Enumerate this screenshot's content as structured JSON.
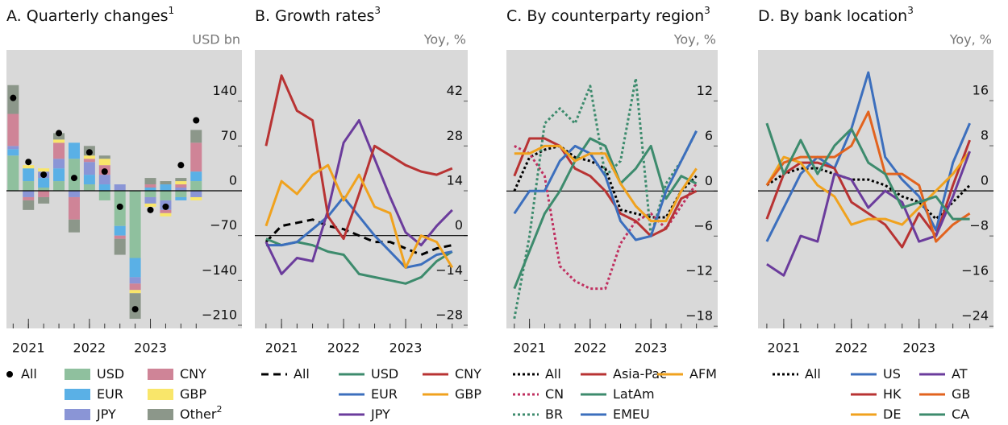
{
  "chart_data": [
    {
      "type": "bar",
      "title": "A. Quarterly changes",
      "title_note": "1",
      "unit": "USD bn",
      "x": [
        2020.75,
        2021,
        2021.25,
        2021.5,
        2021.75,
        2022,
        2022.25,
        2022.5,
        2022.75,
        2023,
        2023.25,
        2023.5,
        2023.75
      ],
      "xlim": [
        2020.64,
        2024.5
      ],
      "xticks": [
        2021,
        2022,
        2023
      ],
      "ylim": [
        -215,
        220
      ],
      "yticks": [
        {
          "value": 140,
          "label": "140"
        },
        {
          "value": 70,
          "label": "70"
        },
        0,
        {
          "value": -70,
          "label": "−70"
        },
        {
          "value": -140,
          "label": "−140"
        },
        {
          "value": -210,
          "label": "−210"
        }
      ],
      "series": [
        {
          "name": "All",
          "marker": "dot",
          "color": "#000000",
          "values": [
            145,
            45,
            25,
            90,
            20,
            60,
            30,
            -25,
            -185,
            -30,
            -25,
            40,
            110
          ]
        },
        {
          "name": "USD",
          "color": "#8fc09e",
          "values": [
            55,
            15,
            5,
            15,
            50,
            10,
            -15,
            -55,
            -105,
            -10,
            -15,
            -10,
            15
          ]
        },
        {
          "name": "EUR",
          "color": "#5ab0e6",
          "values": [
            10,
            20,
            15,
            20,
            25,
            15,
            10,
            -15,
            -30,
            5,
            10,
            -5,
            15
          ]
        },
        {
          "name": "JPY",
          "color": "#8a95d6",
          "values": [
            5,
            -10,
            10,
            15,
            -10,
            20,
            15,
            10,
            -10,
            -10,
            -15,
            5,
            -10
          ]
        },
        {
          "name": "CNY",
          "color": "#cf8497",
          "values": [
            50,
            -5,
            -10,
            25,
            -35,
            5,
            15,
            -5,
            -10,
            5,
            -5,
            5,
            45
          ]
        },
        {
          "name": "GBP",
          "color": "#f9e66a",
          "values": [
            0,
            5,
            5,
            5,
            0,
            5,
            10,
            0,
            -5,
            -5,
            -5,
            5,
            -5
          ]
        },
        {
          "name": "Other",
          "note": "2",
          "color": "#8c978a",
          "values": [
            45,
            -15,
            -10,
            10,
            -20,
            15,
            5,
            -25,
            -40,
            10,
            5,
            5,
            20
          ]
        }
      ]
    },
    {
      "type": "line",
      "title": "B. Growth rates",
      "title_note": "3",
      "unit": "Yoy, %",
      "x": [
        2020.75,
        2021,
        2021.25,
        2021.5,
        2021.75,
        2022,
        2022.25,
        2022.5,
        2022.75,
        2023,
        2023.25,
        2023.5,
        2023.75
      ],
      "xlim": [
        2020.57,
        2024.0
      ],
      "xticks": [
        2021,
        2022,
        2023
      ],
      "ylim": [
        -29,
        58
      ],
      "yticks": [
        42,
        28,
        14,
        0,
        {
          "value": -14,
          "label": "−14"
        },
        {
          "value": -28,
          "label": "−28"
        }
      ],
      "series": [
        {
          "name": "All",
          "style": "dashed",
          "color": "#000000",
          "values": [
            -2,
            3,
            4,
            5,
            3,
            2,
            0,
            -2,
            -2,
            -4,
            -6,
            -4,
            -3
          ]
        },
        {
          "name": "USD",
          "style": "solid",
          "color": "#3d8b6d",
          "values": [
            -1,
            -3,
            -2,
            -3,
            -5,
            -6,
            -12,
            -13,
            -14,
            -15,
            -13,
            -8,
            -5
          ]
        },
        {
          "name": "EUR",
          "style": "solid",
          "color": "#3c6fbd",
          "values": [
            -3,
            -3,
            -2,
            2,
            6,
            12,
            6,
            0,
            -5,
            -10,
            -9,
            -6,
            -5
          ]
        },
        {
          "name": "JPY",
          "style": "solid",
          "color": "#6b3c9c",
          "values": [
            -2,
            -12,
            -7,
            -8,
            8,
            29,
            36,
            24,
            12,
            1,
            -3,
            3,
            8
          ]
        },
        {
          "name": "CNY",
          "style": "solid",
          "color": "#b83333",
          "values": [
            28,
            50,
            39,
            36,
            6,
            -1,
            13,
            28,
            25,
            22,
            20,
            19,
            21
          ]
        },
        {
          "name": "GBP",
          "style": "solid",
          "color": "#f0a21e",
          "values": [
            3,
            17,
            13,
            19,
            22,
            11,
            19,
            9,
            7,
            -10,
            0,
            -2,
            -10
          ]
        }
      ]
    },
    {
      "type": "line",
      "title": "C. By counterparty region",
      "title_note": "3",
      "unit": "Yoy, %",
      "x": [
        2020.75,
        2021,
        2021.25,
        2021.5,
        2021.75,
        2022,
        2022.25,
        2022.5,
        2022.75,
        2023,
        2023.25,
        2023.5,
        2023.75
      ],
      "xlim": [
        2020.62,
        2024.1
      ],
      "xticks": [
        2021,
        2022,
        2023
      ],
      "ylim": [
        -18.3,
        18.8
      ],
      "yticks": [
        12,
        6,
        0,
        {
          "value": -6,
          "label": "−6"
        },
        {
          "value": -12,
          "label": "−12"
        },
        {
          "value": -18,
          "label": "−18"
        }
      ],
      "series": [
        {
          "name": "All",
          "style": "dotted",
          "color": "#000000",
          "values": [
            0,
            4.5,
            5.5,
            6,
            4.5,
            4,
            3,
            -2.5,
            -3,
            -3.5,
            -3.5,
            0,
            2
          ]
        },
        {
          "name": "CN",
          "style": "dotted",
          "color": "#c03060",
          "values": [
            6,
            5,
            2,
            -10,
            -12,
            -13,
            -13,
            -7,
            -4,
            -3,
            -5,
            -2,
            1
          ]
        },
        {
          "name": "BR",
          "style": "dotted",
          "color": "#3d8b6d",
          "values": [
            -17,
            -6,
            9,
            11,
            9,
            14,
            2,
            4,
            15,
            -6,
            1,
            4,
            8
          ]
        },
        {
          "name": "Asia-Pac",
          "style": "solid",
          "color": "#b83333",
          "values": [
            2,
            7,
            7,
            6,
            3,
            2,
            0,
            -3,
            -4,
            -6,
            -5,
            -1,
            0
          ]
        },
        {
          "name": "LatAm",
          "style": "solid",
          "color": "#3d8b6d",
          "values": [
            -13,
            -8,
            -3,
            0,
            4,
            7,
            6,
            1,
            3,
            6,
            -1,
            2,
            1
          ]
        },
        {
          "name": "EMEU",
          "style": "solid",
          "color": "#3c6fbd",
          "values": [
            -3,
            0,
            0,
            4,
            6,
            5,
            2,
            -4,
            -6.5,
            -6,
            0,
            4,
            8
          ]
        },
        {
          "name": "AFM",
          "style": "solid",
          "color": "#f0a21e",
          "values": [
            5,
            5,
            6,
            6,
            4,
            5,
            5,
            1,
            -2,
            -4,
            -4,
            0,
            3
          ]
        }
      ]
    },
    {
      "type": "line",
      "title": "D. By bank location",
      "title_note": "3",
      "unit": "Yoy, %",
      "x": [
        2020.75,
        2021,
        2021.25,
        2021.5,
        2021.75,
        2022,
        2022.25,
        2022.5,
        2022.75,
        2023,
        2023.25,
        2023.5,
        2023.75
      ],
      "xlim": [
        2020.62,
        2024.1
      ],
      "xticks": [
        2021,
        2022,
        2023
      ],
      "ylim": [
        -24.4,
        25
      ],
      "yticks": [
        16,
        8,
        0,
        {
          "value": -8,
          "label": "−8"
        },
        {
          "value": -16,
          "label": "−16"
        },
        {
          "value": -24,
          "label": "−24"
        }
      ],
      "series": [
        {
          "name": "All",
          "style": "dotted",
          "color": "#000000",
          "values": [
            1,
            3,
            4,
            4,
            3,
            2,
            2,
            1,
            -1,
            -2,
            -5,
            -2,
            1
          ]
        },
        {
          "name": "US",
          "style": "solid",
          "color": "#3c6fbd",
          "values": [
            -9,
            -3,
            3,
            6,
            4,
            11,
            21,
            6,
            2,
            -1,
            -7,
            5,
            12
          ]
        },
        {
          "name": "HK",
          "style": "solid",
          "color": "#b83333",
          "values": [
            -5,
            3,
            5,
            5,
            4,
            -2,
            -4,
            -6,
            -10,
            -4,
            -8,
            1,
            9
          ]
        },
        {
          "name": "DE",
          "style": "solid",
          "color": "#f0a21e",
          "values": [
            1,
            6,
            5,
            1,
            -1,
            -6,
            -5,
            -5,
            -6,
            -3,
            0,
            3,
            7
          ]
        },
        {
          "name": "AT",
          "style": "solid",
          "color": "#6b3c9c",
          "values": [
            -13,
            -15,
            -8,
            -9,
            3,
            2,
            -3,
            0,
            -2,
            -9,
            -8,
            -1,
            7
          ]
        },
        {
          "name": "GB",
          "style": "solid",
          "color": "#e2631e",
          "values": [
            1,
            5,
            6,
            6,
            6,
            8,
            14,
            3,
            3,
            1,
            -9,
            -6,
            -4
          ]
        },
        {
          "name": "CA",
          "style": "solid",
          "color": "#3d8b6d",
          "values": [
            12,
            3,
            9,
            3,
            8,
            11,
            5,
            3,
            -3,
            -2,
            -1,
            -5,
            -5
          ]
        }
      ]
    }
  ]
}
